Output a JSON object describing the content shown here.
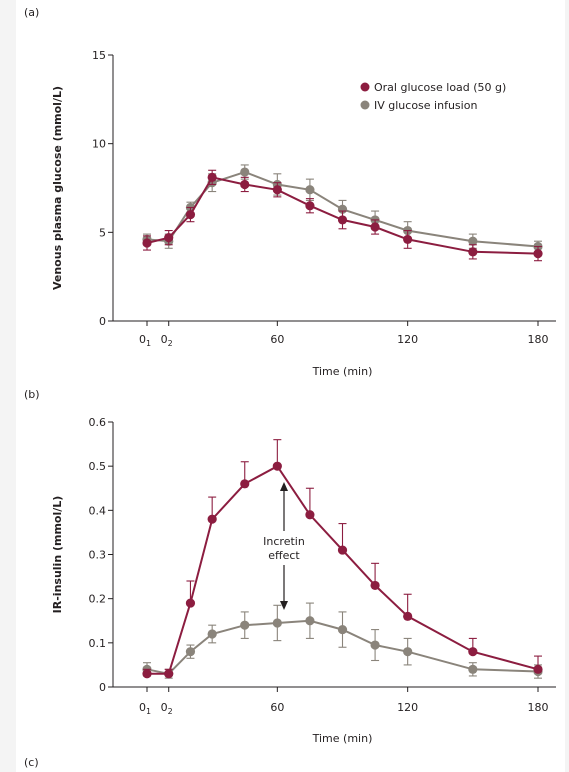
{
  "panel_labels": [
    "(a)",
    "(b)",
    "(c)"
  ],
  "annotation": {
    "line1": "Incretin",
    "line2": "effect"
  },
  "colors": {
    "oral": "#8c1d40",
    "iv": "#8a847b",
    "axis": "#231f20"
  },
  "chart_data": [
    {
      "type": "line",
      "panel": "(a)",
      "title": "",
      "xlabel": "Time (min)",
      "ylabel": "Venous plasma glucose (mmol/L)",
      "xlim": [
        -10,
        185
      ],
      "ylim": [
        0,
        15
      ],
      "xticks": [
        {
          "v": 0,
          "label": "0",
          "sub": "1"
        },
        {
          "v": 10,
          "label": "0",
          "sub": "2"
        },
        {
          "v": 60,
          "label": "60",
          "sub": ""
        },
        {
          "v": 120,
          "label": "120",
          "sub": ""
        },
        {
          "v": 180,
          "label": "180",
          "sub": ""
        }
      ],
      "yticks": [
        {
          "v": 0,
          "label": "0"
        },
        {
          "v": 5,
          "label": "5"
        },
        {
          "v": 10,
          "label": "10"
        },
        {
          "v": 15,
          "label": "15"
        }
      ],
      "legend": "top-right",
      "grid": false,
      "series": [
        {
          "name": "Oral glucose load (50 g)",
          "color": "#8c1d40",
          "errorbars": "symmetric",
          "x": [
            0,
            10,
            20,
            30,
            45,
            60,
            75,
            90,
            105,
            120,
            150,
            180
          ],
          "y": [
            4.4,
            4.7,
            6.0,
            8.1,
            7.7,
            7.4,
            6.5,
            5.7,
            5.3,
            4.6,
            3.9,
            3.8
          ],
          "err": [
            0.4,
            0.4,
            0.4,
            0.4,
            0.4,
            0.4,
            0.4,
            0.5,
            0.4,
            0.5,
            0.4,
            0.4
          ]
        },
        {
          "name": "IV glucose infusion",
          "color": "#8a847b",
          "errorbars": "symmetric",
          "x": [
            0,
            10,
            20,
            30,
            45,
            60,
            75,
            90,
            105,
            120,
            150,
            180
          ],
          "y": [
            4.6,
            4.5,
            6.4,
            7.8,
            8.4,
            7.7,
            7.4,
            6.3,
            5.7,
            5.1,
            4.5,
            4.2
          ],
          "err": [
            0.3,
            0.4,
            0.3,
            0.5,
            0.4,
            0.6,
            0.6,
            0.5,
            0.5,
            0.5,
            0.4,
            0.3
          ]
        }
      ]
    },
    {
      "type": "line",
      "panel": "(b)",
      "title": "",
      "xlabel": "Time (min)",
      "ylabel": "IR-insulin (mmol/L)",
      "xlim": [
        -10,
        185
      ],
      "ylim": [
        0,
        0.6
      ],
      "xticks": [
        {
          "v": 0,
          "label": "0",
          "sub": "1"
        },
        {
          "v": 10,
          "label": "0",
          "sub": "2"
        },
        {
          "v": 60,
          "label": "60",
          "sub": ""
        },
        {
          "v": 120,
          "label": "120",
          "sub": ""
        },
        {
          "v": 180,
          "label": "180",
          "sub": ""
        }
      ],
      "yticks": [
        {
          "v": 0,
          "label": "0"
        },
        {
          "v": 0.1,
          "label": "0.1"
        },
        {
          "v": 0.2,
          "label": "0.2"
        },
        {
          "v": 0.3,
          "label": "0.3"
        },
        {
          "v": 0.4,
          "label": "0.4"
        },
        {
          "v": 0.5,
          "label": "0.5"
        },
        {
          "v": 0.6,
          "label": "0.6"
        }
      ],
      "grid": false,
      "series": [
        {
          "name": "Oral glucose load (50 g)",
          "color": "#8c1d40",
          "errorbars": "upper",
          "x": [
            0,
            10,
            20,
            30,
            45,
            60,
            75,
            90,
            105,
            120,
            150,
            180
          ],
          "y": [
            0.03,
            0.03,
            0.19,
            0.38,
            0.46,
            0.5,
            0.39,
            0.31,
            0.23,
            0.16,
            0.08,
            0.04
          ],
          "err": [
            0.01,
            0.01,
            0.05,
            0.05,
            0.05,
            0.06,
            0.06,
            0.06,
            0.05,
            0.05,
            0.03,
            0.03
          ]
        },
        {
          "name": "IV glucose infusion",
          "color": "#8a847b",
          "errorbars": "symmetric",
          "x": [
            0,
            10,
            20,
            30,
            45,
            60,
            75,
            90,
            105,
            120,
            150,
            180
          ],
          "y": [
            0.04,
            0.03,
            0.08,
            0.12,
            0.14,
            0.145,
            0.15,
            0.13,
            0.095,
            0.08,
            0.04,
            0.035
          ],
          "err": [
            0.015,
            0.01,
            0.015,
            0.02,
            0.03,
            0.04,
            0.04,
            0.04,
            0.035,
            0.03,
            0.015,
            0.015
          ]
        }
      ]
    }
  ]
}
